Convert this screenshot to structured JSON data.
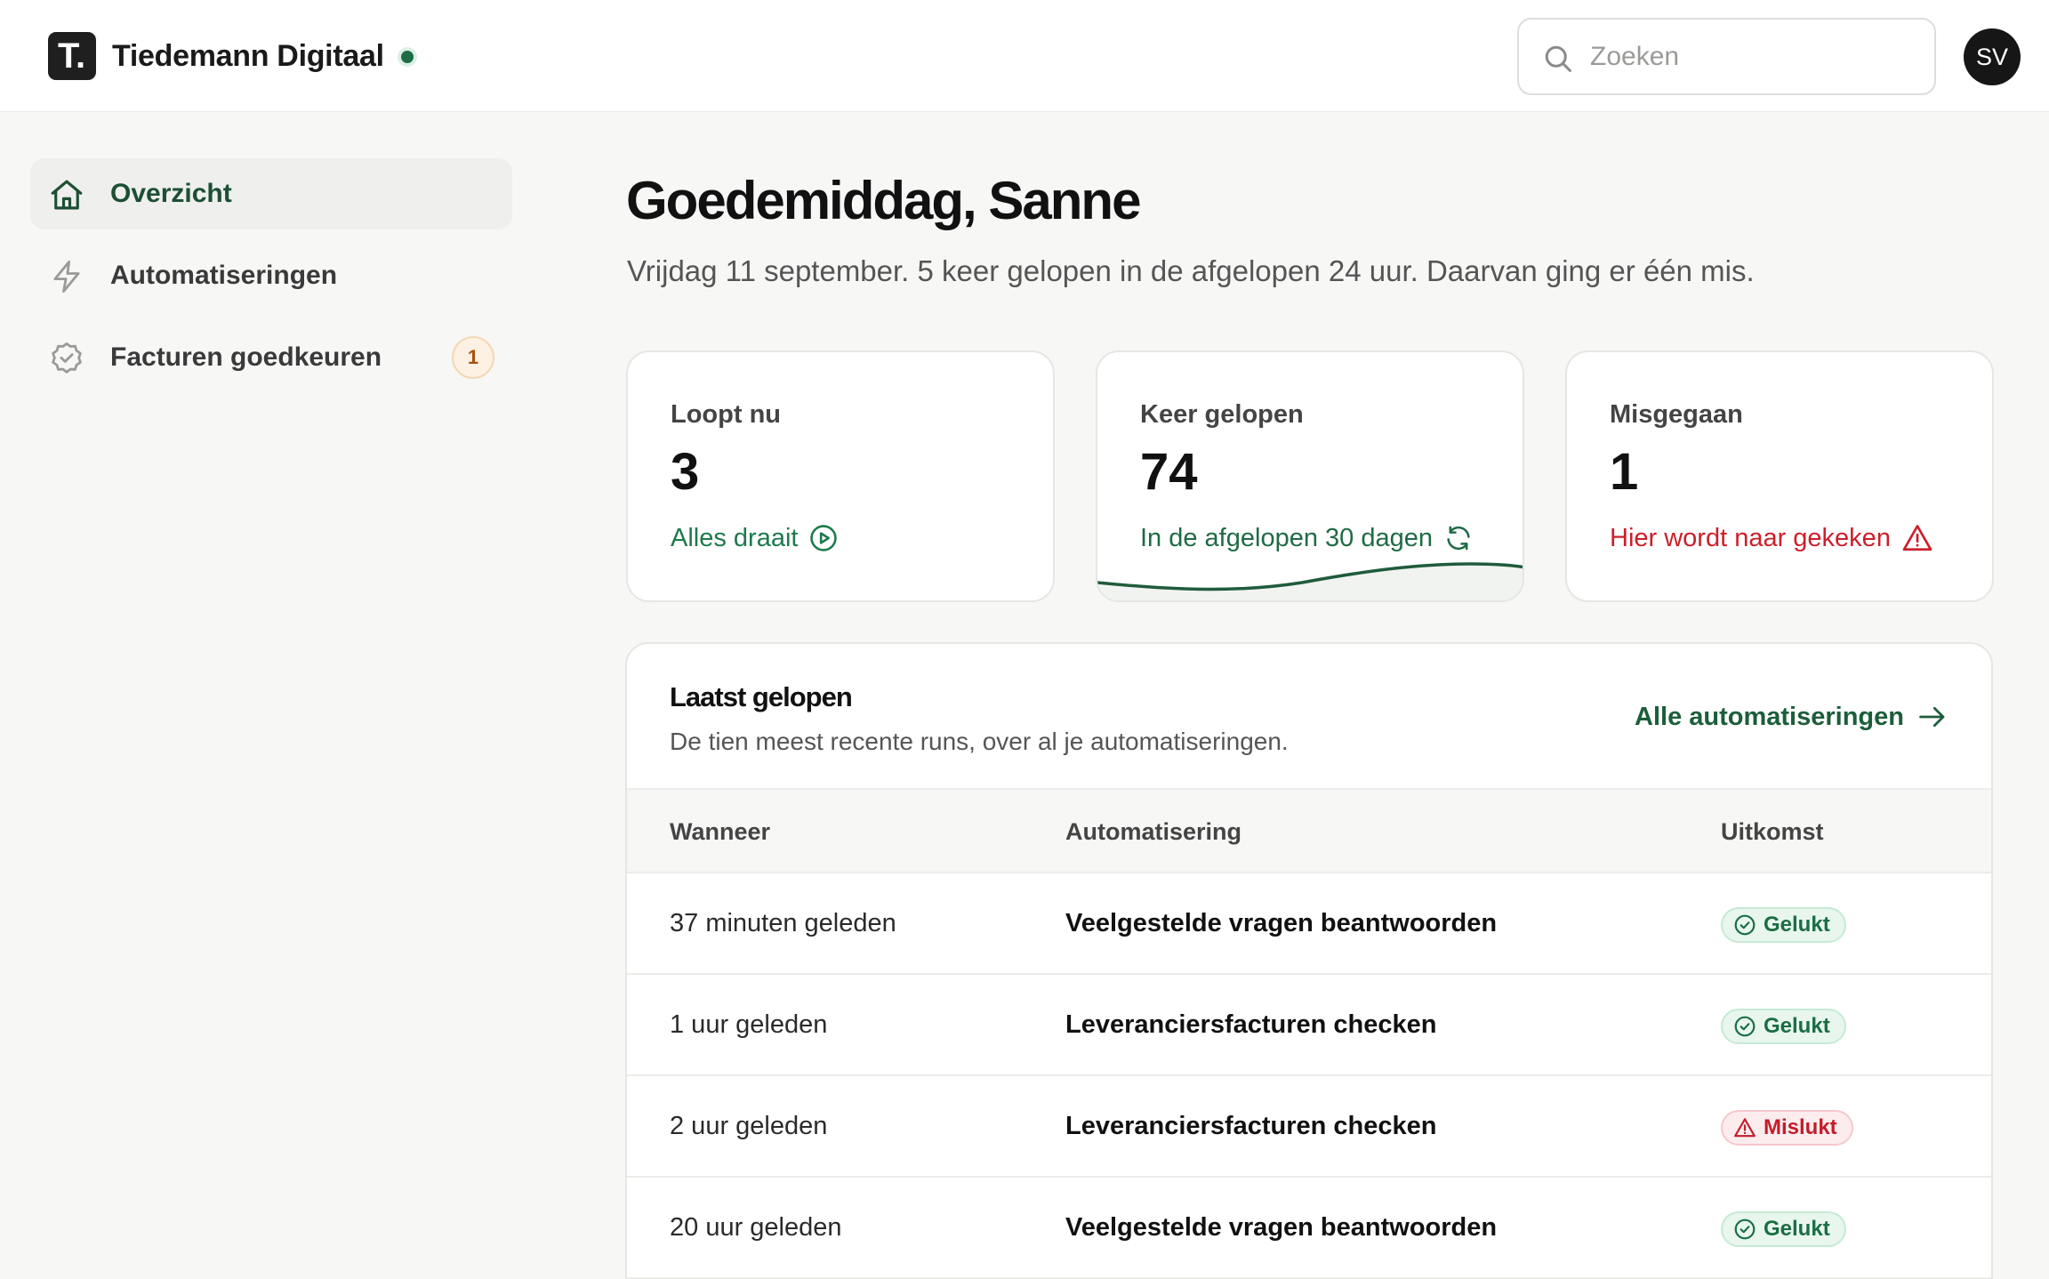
{
  "header": {
    "brand_name": "Tiedemann Digitaal",
    "logo_letter": "T.",
    "search_placeholder": "Zoeken",
    "avatar_initials": "SV",
    "colors": {
      "accent": "#1f6b46",
      "success": "#1c7a4c",
      "danger": "#cc1f2a"
    }
  },
  "sidebar": {
    "items": [
      {
        "label": "Overzicht",
        "icon": "home-icon",
        "active": true
      },
      {
        "label": "Automatiseringen",
        "icon": "lightning-icon",
        "active": false
      },
      {
        "label": "Facturen goedkeuren",
        "icon": "check-badge-icon",
        "active": false,
        "badge": "1"
      }
    ]
  },
  "main": {
    "greeting": "Goedemiddag, Sanne",
    "subline": "Vrijdag 11 september. 5 keer gelopen in de afgelopen 24 uur. Daarvan ging er één mis.",
    "stats": [
      {
        "title": "Loopt nu",
        "value": "3",
        "footer": "Alles draait",
        "icon": "play-circle-icon"
      },
      {
        "title": "Keer gelopen",
        "value": "74",
        "footer": "In de afgelopen 30 dagen",
        "icon": "refresh-icon"
      },
      {
        "title": "Misgegaan",
        "value": "1",
        "footer": "Hier wordt naar gekeken",
        "icon": "warning-icon"
      }
    ],
    "recent": {
      "title": "Laatst gelopen",
      "subtitle": "De tien meest recente runs, over al je automatiseringen.",
      "link_label": "Alle automatiseringen",
      "columns": [
        "Wanneer",
        "Automatisering",
        "Uitkomst"
      ],
      "rows": [
        {
          "when": "37 minuten geleden",
          "automation": "Veelgestelde vragen beantwoorden",
          "result": "Gelukt",
          "status": "success"
        },
        {
          "when": "1 uur geleden",
          "automation": "Leveranciersfacturen checken",
          "result": "Gelukt",
          "status": "success"
        },
        {
          "when": "2 uur geleden",
          "automation": "Leveranciersfacturen checken",
          "result": "Mislukt",
          "status": "failed"
        },
        {
          "when": "20 uur geleden",
          "automation": "Veelgestelde vragen beantwoorden",
          "result": "Gelukt",
          "status": "success"
        }
      ]
    }
  }
}
